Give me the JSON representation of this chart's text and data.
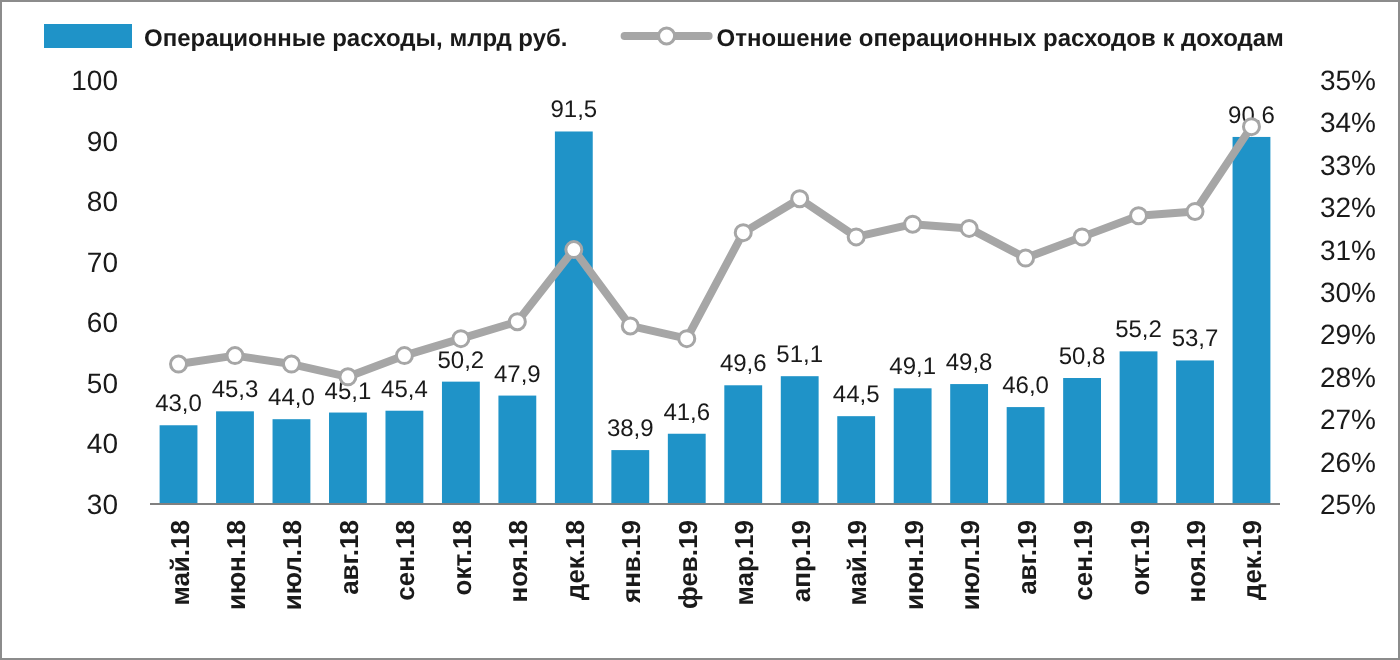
{
  "chart_data": {
    "type": "bar",
    "categories": [
      "май.18",
      "июн.18",
      "июл.18",
      "авг.18",
      "сен.18",
      "окт.18",
      "ноя.18",
      "дек.18",
      "янв.19",
      "фев.19",
      "мар.19",
      "апр.19",
      "май.19",
      "июн.19",
      "июл.19",
      "авг.19",
      "сен.19",
      "окт.19",
      "ноя.19",
      "дек.19"
    ],
    "series": [
      {
        "name": "Операционные расходы, млрд руб.",
        "color": "#1f93c8",
        "values": [
          43.0,
          45.3,
          44.0,
          45.1,
          45.4,
          50.2,
          47.9,
          91.5,
          38.9,
          41.6,
          49.6,
          51.1,
          44.5,
          49.1,
          49.8,
          46.0,
          50.8,
          55.2,
          53.7,
          90.6
        ],
        "value_labels": [
          "43,0",
          "45,3",
          "44,0",
          "45,1",
          "45,4",
          "50,2",
          "47,9",
          "91,5",
          "38,9",
          "41,6",
          "49,6",
          "51,1",
          "44,5",
          "49,1",
          "49,8",
          "46,0",
          "50,8",
          "55,2",
          "53,7",
          "90,6"
        ]
      },
      {
        "name": "Отношение операционных расходов к доходам",
        "type": "line",
        "axis": "y2",
        "color": "#a6a6a6",
        "marker": "circle",
        "values": [
          28.3,
          28.5,
          28.3,
          28.0,
          28.5,
          28.9,
          29.3,
          31.0,
          29.2,
          28.9,
          31.4,
          32.2,
          31.3,
          31.6,
          31.5,
          30.8,
          31.3,
          31.8,
          31.9,
          33.9
        ]
      }
    ],
    "ylim": [
      30,
      100
    ],
    "yticks": [
      30,
      40,
      50,
      60,
      70,
      80,
      90,
      100
    ],
    "y2lim": [
      25,
      35
    ],
    "y2ticks": [
      {
        "value": 25,
        "label": "25%"
      },
      {
        "value": 26,
        "label": "26%"
      },
      {
        "value": 27,
        "label": "27%"
      },
      {
        "value": 28,
        "label": "28%"
      },
      {
        "value": 29,
        "label": "29%"
      },
      {
        "value": 30,
        "label": "30%"
      },
      {
        "value": 31,
        "label": "31%"
      },
      {
        "value": 32,
        "label": "32%"
      },
      {
        "value": 33,
        "label": "33%"
      },
      {
        "value": 34,
        "label": "34%"
      },
      {
        "value": 35,
        "label": "35%"
      }
    ],
    "grid": false,
    "legend": "top"
  }
}
